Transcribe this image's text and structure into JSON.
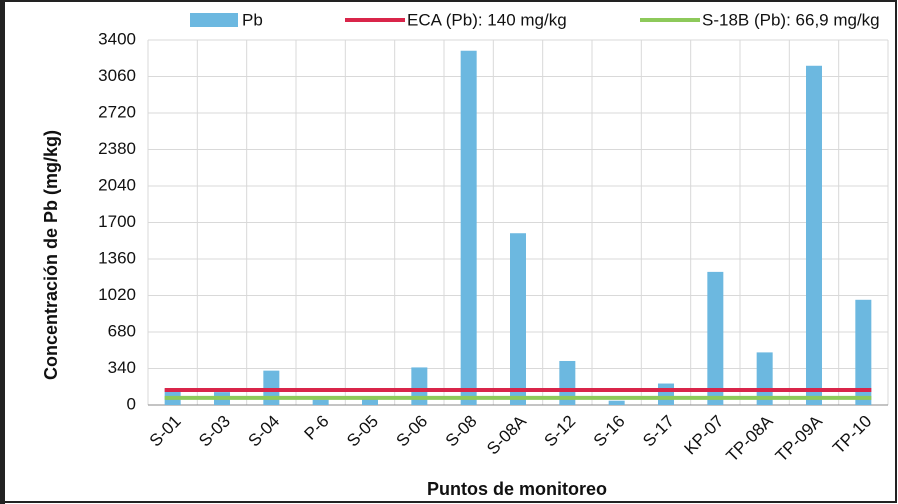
{
  "chart_data": {
    "type": "bar",
    "x_label": "Puntos de monitoreo",
    "y_label": "Concentración de Pb (mg/kg)",
    "categories": [
      "S-01",
      "S-03",
      "S-04",
      "P-6",
      "S-05",
      "S-06",
      "S-08",
      "S-08A",
      "S-12",
      "S-16",
      "S-17",
      "KP-07",
      "TP-08A",
      "TP-09A",
      "TP-10"
    ],
    "series": [
      {
        "name": "Pb",
        "color": "#6cb8e0",
        "values": [
          150,
          120,
          320,
          50,
          60,
          350,
          3300,
          1600,
          410,
          40,
          200,
          1240,
          490,
          3160,
          980
        ]
      }
    ],
    "reference_lines": [
      {
        "name": "ECA (Pb): 140 mg/kg",
        "value": 140,
        "color": "#d9254a"
      },
      {
        "name": "S-18B (Pb): 66,9 mg/kg",
        "value": 66.9,
        "color": "#8dc95a"
      }
    ],
    "ylim": [
      0,
      3400
    ],
    "yticks": [
      0,
      340,
      680,
      1020,
      1360,
      1700,
      2040,
      2380,
      2720,
      3060,
      3400
    ],
    "grid": true
  }
}
